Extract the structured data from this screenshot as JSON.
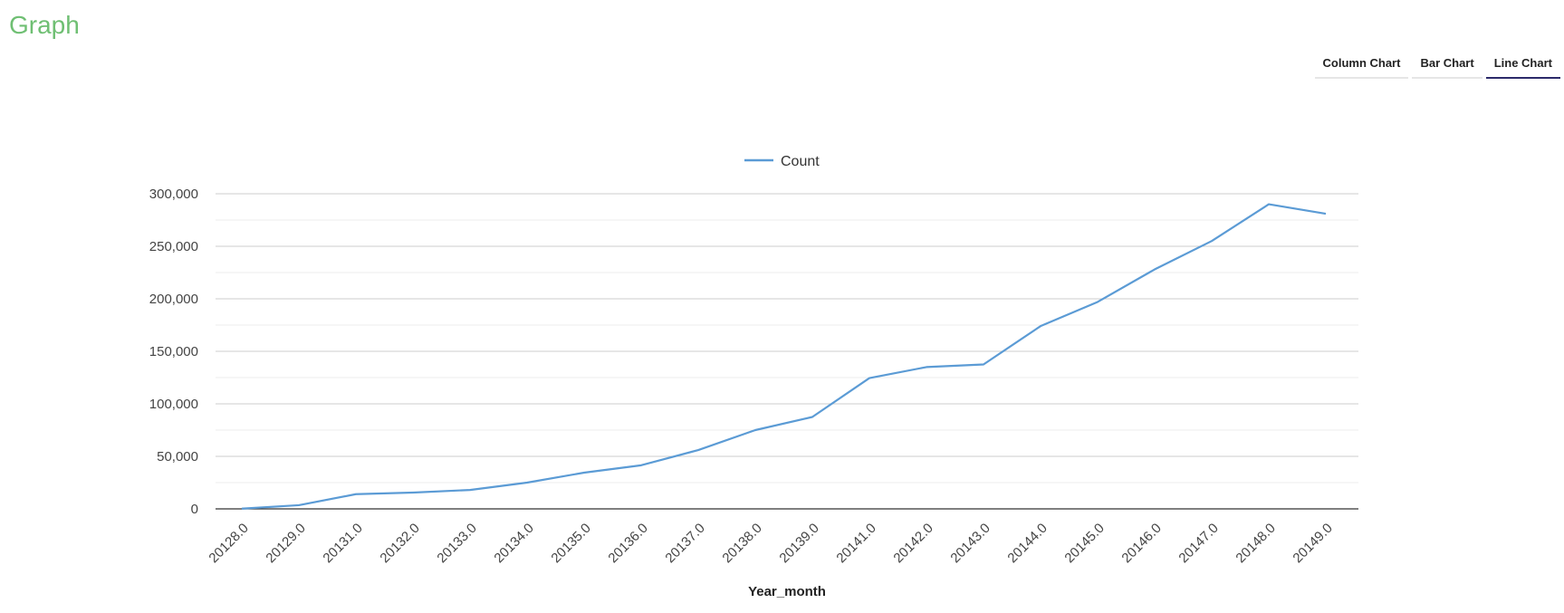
{
  "header": {
    "title": "Graph"
  },
  "tabs": [
    {
      "label": "Column Chart",
      "active": false
    },
    {
      "label": "Bar Chart",
      "active": false
    },
    {
      "label": "Line Chart",
      "active": true
    }
  ],
  "colors": {
    "title": "#6fbf73",
    "series": "#5b9bd5",
    "active_tab_underline": "#2c2a6a"
  },
  "chart_data": {
    "type": "line",
    "xlabel": "Year_month",
    "ylabel": "",
    "ylim": [
      0,
      300000
    ],
    "yticks": [
      "0",
      "50,000",
      "100,000",
      "150,000",
      "200,000",
      "250,000",
      "300,000"
    ],
    "grid": true,
    "legend_position": "top",
    "categories": [
      "20128.0",
      "20129.0",
      "20131.0",
      "20132.0",
      "20133.0",
      "20134.0",
      "20135.0",
      "20136.0",
      "20137.0",
      "20138.0",
      "20139.0",
      "20141.0",
      "20142.0",
      "20143.0",
      "20144.0",
      "20145.0",
      "20146.0",
      "20147.0",
      "20148.0",
      "20149.0"
    ],
    "series": [
      {
        "name": "Count",
        "values": [
          200,
          3500,
          14000,
          15500,
          18000,
          25000,
          34500,
          41500,
          56000,
          75000,
          87500,
          124500,
          135000,
          137500,
          174000,
          197000,
          228000,
          255000,
          290000,
          281000
        ]
      }
    ]
  }
}
